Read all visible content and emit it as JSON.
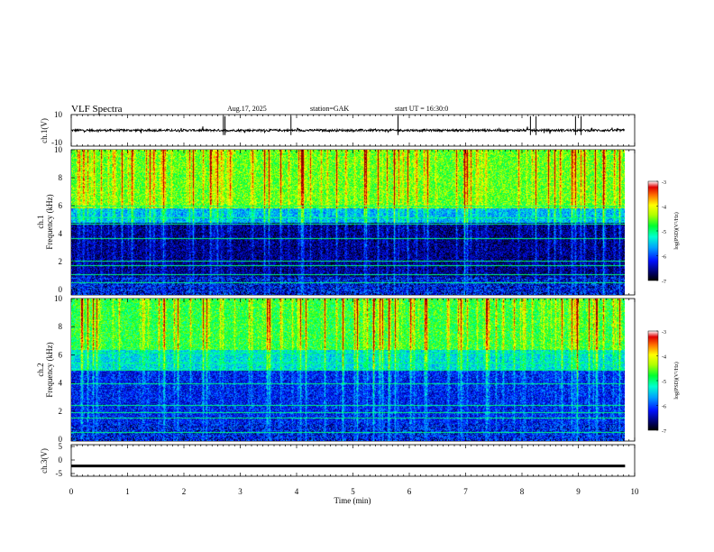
{
  "header": {
    "title": "VLF  Spectra",
    "date": "Aug.17, 2025",
    "station": "station=GAK",
    "start": "start  UT =   16:30:0"
  },
  "chart_data": [
    {
      "type": "line",
      "panel": "ch1-waveform",
      "ylabel": "ch.1(V)",
      "ylim": [
        -10,
        10
      ],
      "ytick_labels": [
        "10",
        "-10"
      ],
      "baseline": 0,
      "noise_amplitude": 0.7,
      "spike_times_min": [
        2.7,
        2.73,
        3.9,
        5.8,
        8.15,
        8.25,
        8.95,
        9.05
      ]
    },
    {
      "type": "heatmap",
      "panel": "ch1-spectrogram",
      "ylabel": "ch.1\nFrequency  (kHz)",
      "xlim": [
        0,
        10
      ],
      "ylim": [
        0,
        10
      ],
      "ytick_labels": [
        "0",
        "2",
        "4",
        "6",
        "8",
        "10"
      ],
      "colorbar": {
        "label": "log(PSD)(V²/Hz)",
        "range": [
          -7,
          -3
        ],
        "tick_labels": [
          "-3",
          "-4",
          "-5",
          "-6",
          "-7"
        ]
      },
      "data_extent_min": 9.83,
      "green_line_freqs_khz": [
        0.8,
        1.4,
        2.0,
        2.3,
        3.9,
        4.9,
        5.3,
        6.1
      ],
      "description_levels": [
        {
          "band_khz": [
            0,
            1.2
          ],
          "log_psd": -6.5
        },
        {
          "band_khz": [
            1.2,
            5.0
          ],
          "log_psd": -6.6
        },
        {
          "band_khz": [
            5.0,
            6.0
          ],
          "log_psd": -5.6
        },
        {
          "band_khz": [
            6.0,
            10.0
          ],
          "log_psd": -4.6
        }
      ]
    },
    {
      "type": "heatmap",
      "panel": "ch2-spectrogram",
      "ylabel": "ch.2\nFrequency  (kHz)",
      "xlim": [
        0,
        10
      ],
      "ylim": [
        0,
        10
      ],
      "ytick_labels": [
        "0",
        "2",
        "4",
        "6",
        "8",
        "10"
      ],
      "colorbar": {
        "label": "log(PSD)(V²/Hz)",
        "range": [
          -7,
          -3
        ],
        "tick_labels": [
          "-3",
          "-4",
          "-5",
          "-6",
          "-7"
        ]
      },
      "data_extent_min": 9.83,
      "green_line_freqs_khz": [
        0.6,
        1.6,
        2.0,
        2.5,
        4.0,
        5.0,
        5.5,
        6.2
      ],
      "description_levels": [
        {
          "band_khz": [
            0,
            1.2
          ],
          "log_psd": -6.4
        },
        {
          "band_khz": [
            1.2,
            5.0
          ],
          "log_psd": -6.2
        },
        {
          "band_khz": [
            5.0,
            6.4
          ],
          "log_psd": -5.4
        },
        {
          "band_khz": [
            6.4,
            10.0
          ],
          "log_psd": -4.8
        }
      ]
    },
    {
      "type": "line",
      "panel": "ch3-waveform",
      "ylabel": "ch.3(V)",
      "ylim": [
        -6,
        6
      ],
      "ytick_labels": [
        "5",
        "0",
        "-5"
      ],
      "baseline": -2.2,
      "xlabel": "Time  (min)",
      "xtick_labels": [
        "0",
        "1",
        "2",
        "3",
        "4",
        "5",
        "6",
        "7",
        "8",
        "9",
        "10"
      ],
      "xlim": [
        0,
        10
      ]
    }
  ]
}
